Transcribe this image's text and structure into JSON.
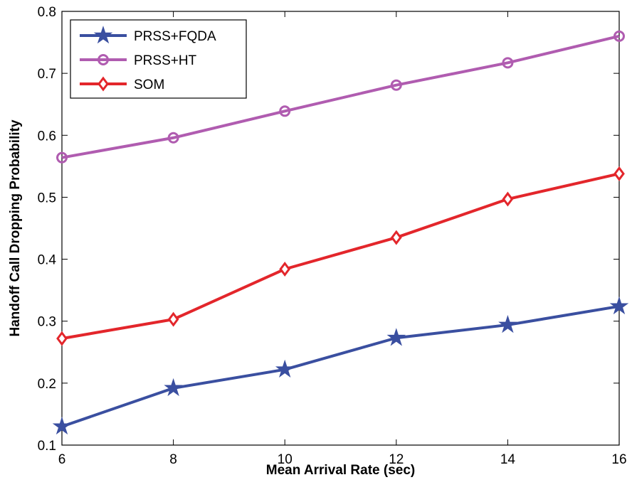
{
  "chart_data": {
    "type": "line",
    "xlabel": "Mean Arrival Rate (sec)",
    "ylabel": "Handoff Call Dropping Probability",
    "xlim": [
      6,
      16
    ],
    "ylim": [
      0.1,
      0.8
    ],
    "xticks": [
      6,
      8,
      10,
      12,
      14,
      16
    ],
    "yticks": [
      0.1,
      0.2,
      0.3,
      0.4,
      0.5,
      0.6,
      0.7,
      0.8
    ],
    "grid": false,
    "legend_position": "top-left",
    "x": [
      6,
      8,
      10,
      12,
      14,
      16
    ],
    "series": [
      {
        "name": "PRSS+FQDA",
        "color": "#3a4fa0",
        "marker": "star",
        "values": [
          0.13,
          0.192,
          0.222,
          0.273,
          0.294,
          0.324
        ]
      },
      {
        "name": "PRSS+HT",
        "color": "#b05cb0",
        "marker": "circle",
        "values": [
          0.564,
          0.596,
          0.639,
          0.681,
          0.717,
          0.76
        ]
      },
      {
        "name": "SOM",
        "color": "#e3262b",
        "marker": "diamond",
        "values": [
          0.272,
          0.303,
          0.384,
          0.435,
          0.497,
          0.538
        ]
      }
    ]
  }
}
